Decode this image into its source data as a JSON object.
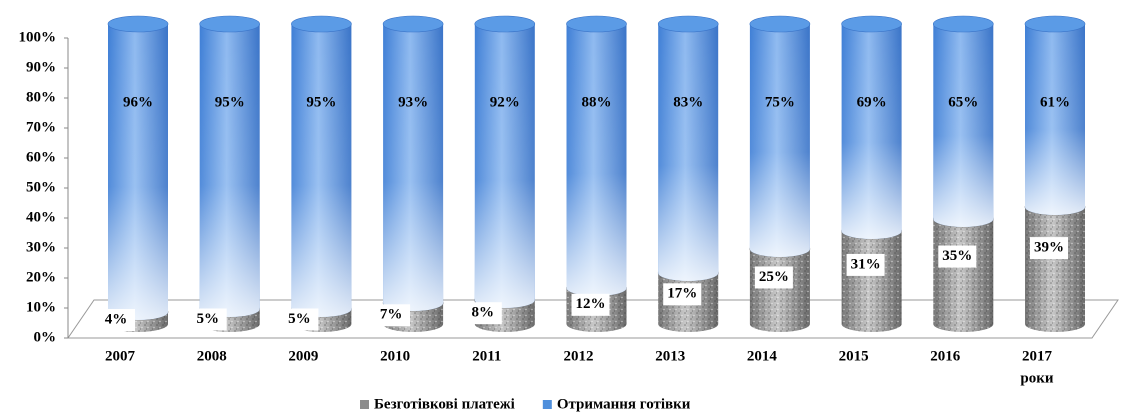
{
  "chart_data": {
    "type": "stacked-cylinder",
    "x_label": "роки",
    "categories": [
      "2007",
      "2008",
      "2009",
      "2010",
      "2011",
      "2012",
      "2013",
      "2014",
      "2015",
      "2016",
      "2017"
    ],
    "series": [
      {
        "name": "Безготівкові платежі",
        "color": "#8c8c8c",
        "values": [
          4,
          5,
          5,
          7,
          8,
          12,
          17,
          25,
          31,
          35,
          39
        ],
        "value_labels": [
          "4%",
          "5%",
          "5%",
          "7%",
          "8%",
          "12%",
          "17%",
          "25%",
          "31%",
          "35%",
          "39%"
        ]
      },
      {
        "name": "Отримання готівки",
        "color": "#4f8fdc",
        "values": [
          96,
          95,
          95,
          93,
          92,
          88,
          83,
          75,
          69,
          65,
          61
        ],
        "value_labels": [
          "96%",
          "95%",
          "95%",
          "93%",
          "92%",
          "88%",
          "83%",
          "75%",
          "69%",
          "65%",
          "61%"
        ]
      }
    ],
    "ylim": [
      0,
      100
    ],
    "yticks": [
      {
        "value": 0,
        "label": "0%"
      },
      {
        "value": 10,
        "label": "10%"
      },
      {
        "value": 20,
        "label": "20%"
      },
      {
        "value": 30,
        "label": "30%"
      },
      {
        "value": 40,
        "label": "40%"
      },
      {
        "value": 50,
        "label": "50%"
      },
      {
        "value": 60,
        "label": "60%"
      },
      {
        "value": 70,
        "label": "70%"
      },
      {
        "value": 80,
        "label": "80%"
      },
      {
        "value": 90,
        "label": "90%"
      },
      {
        "value": 100,
        "label": "100%"
      }
    ],
    "legend": "bottom"
  }
}
